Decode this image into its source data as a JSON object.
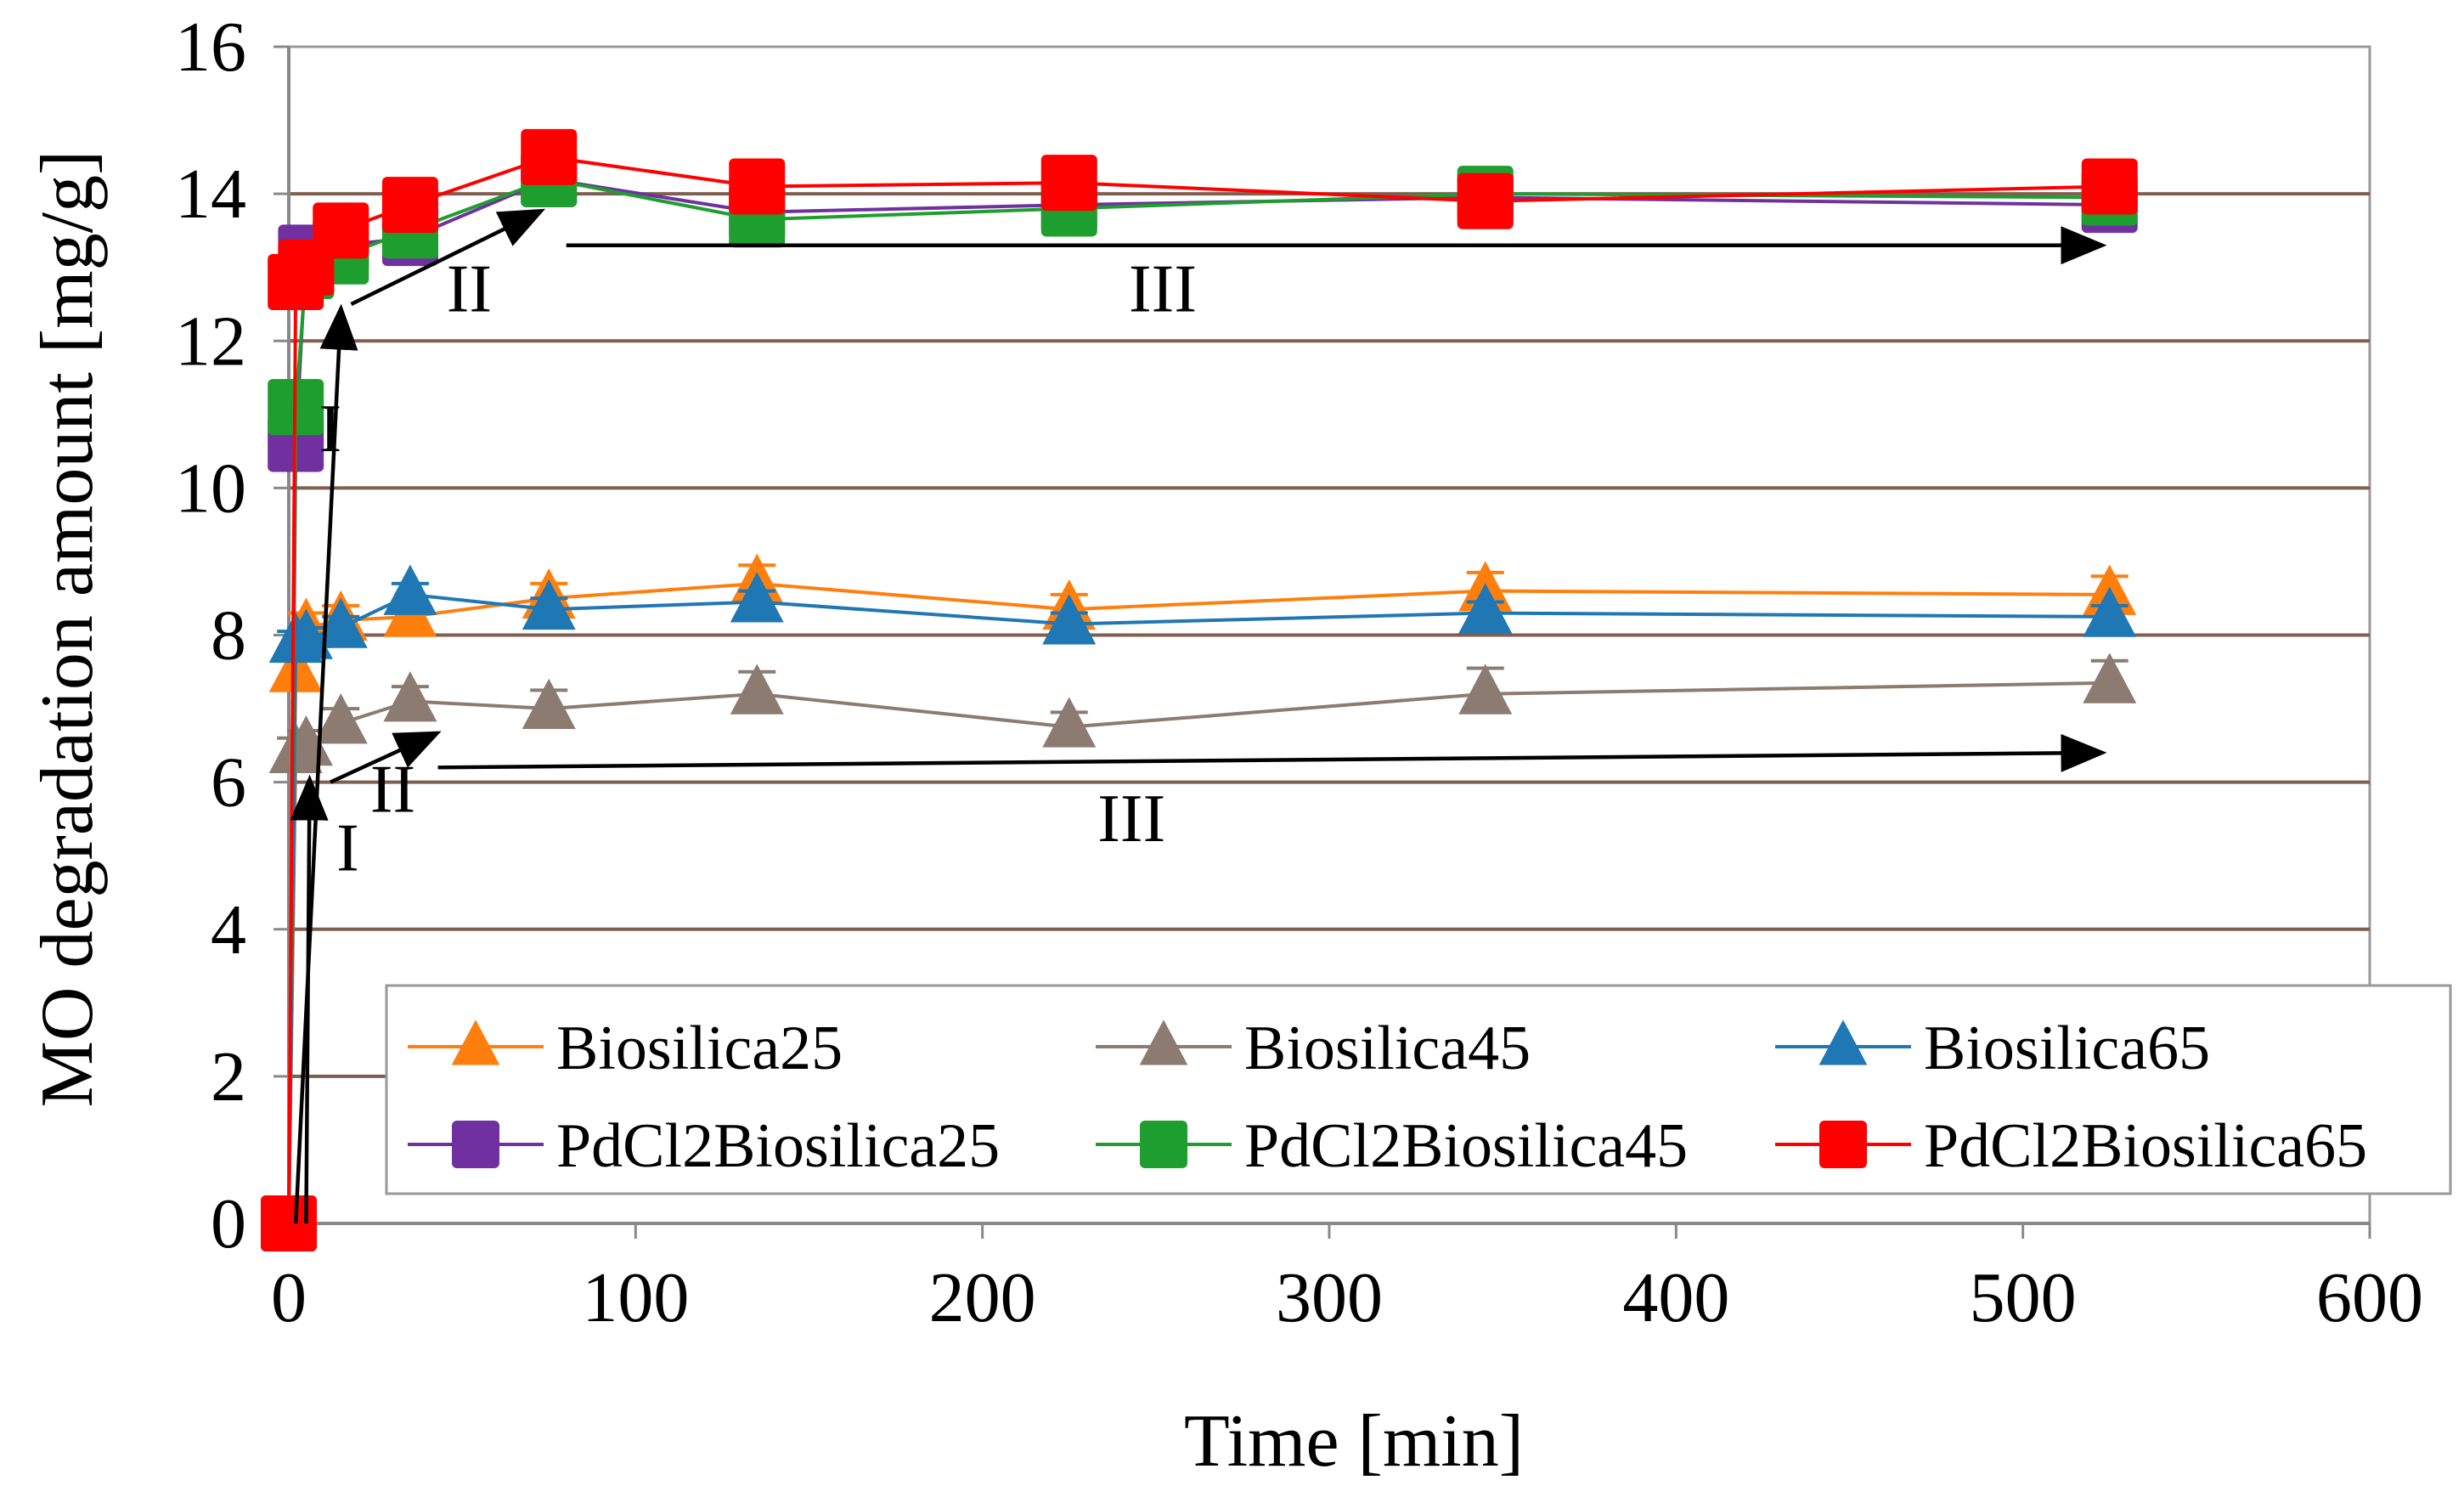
{
  "chart_data": {
    "type": "line",
    "title": "",
    "xlabel": "Time [min]",
    "ylabel": "MO degradation amount [mg/g]",
    "xlim": [
      0,
      600
    ],
    "ylim": [
      0,
      16
    ],
    "xticks": [
      "0",
      "100",
      "200",
      "300",
      "400",
      "500",
      "600"
    ],
    "yticks": [
      "0",
      "2",
      "4",
      "6",
      "8",
      "10",
      "12",
      "14",
      "16"
    ],
    "grid": "horizontal",
    "legend_position": "bottom",
    "x": [
      0,
      2,
      5,
      15,
      35,
      75,
      135,
      225,
      345,
      525
    ],
    "series": [
      {
        "name": "Biosilica25",
        "marker": "triangle",
        "color": "#FF7F0E",
        "values": [
          0,
          7.5,
          8.1,
          8.2,
          8.25,
          8.5,
          8.7,
          8.35,
          8.6,
          8.55
        ],
        "error": [
          0,
          0.2,
          0.2,
          0.2,
          0.2,
          0.2,
          0.25,
          0.2,
          0.25,
          0.25
        ]
      },
      {
        "name": "Biosilica45",
        "marker": "triangle",
        "color": "#8C7B70",
        "values": [
          0,
          6.4,
          6.5,
          6.8,
          7.1,
          7.0,
          7.2,
          6.75,
          7.2,
          7.35
        ],
        "error": [
          0,
          0.2,
          0.2,
          0.2,
          0.2,
          0.25,
          0.3,
          0.2,
          0.35,
          0.3
        ]
      },
      {
        "name": "Biosilica65",
        "marker": "triangle",
        "color": "#1F77B4",
        "values": [
          0,
          7.9,
          7.95,
          8.1,
          8.55,
          8.35,
          8.45,
          8.15,
          8.3,
          8.25
        ],
        "error": [
          0,
          0.15,
          0.15,
          0.15,
          0.15,
          0.15,
          0.15,
          0.15,
          0.15,
          0.15
        ]
      },
      {
        "name": "PdCl2Biosilica25",
        "marker": "square",
        "color": "#7030A0",
        "values": [
          0,
          10.6,
          13.2,
          13.3,
          13.4,
          14.2,
          13.75,
          13.85,
          13.95,
          13.85
        ],
        "error": [
          0,
          0.15,
          0.15,
          0.15,
          0.15,
          0.15,
          0.15,
          0.15,
          0.15,
          0.15
        ]
      },
      {
        "name": "PdCl2Biosilica45",
        "marker": "square",
        "color": "#1E9E2E",
        "values": [
          0,
          11.1,
          12.95,
          13.15,
          13.5,
          14.2,
          13.65,
          13.8,
          14.0,
          13.95
        ],
        "error": [
          0,
          0.15,
          0.15,
          0.15,
          0.15,
          0.15,
          0.15,
          0.15,
          0.15,
          0.15
        ]
      },
      {
        "name": "PdCl2Biosilica65",
        "marker": "square",
        "color": "#FF0000",
        "values": [
          0,
          12.8,
          13.0,
          13.5,
          13.85,
          14.5,
          14.1,
          14.15,
          13.9,
          14.1
        ],
        "error": [
          0,
          0.15,
          0.15,
          0.15,
          0.15,
          0.15,
          0.15,
          0.15,
          0.15,
          0.15
        ]
      }
    ],
    "annotations": [
      {
        "text": "I",
        "x": 12,
        "y": 10.5
      },
      {
        "text": "II",
        "x": 52,
        "y": 12.4
      },
      {
        "text": "III",
        "x": 252,
        "y": 12.4
      },
      {
        "text": "I",
        "x": 17,
        "y": 4.8
      },
      {
        "text": "II",
        "x": 30,
        "y": 5.6
      },
      {
        "text": "III",
        "x": 243,
        "y": 5.2
      }
    ],
    "arrows": [
      {
        "from": [
          2,
          0
        ],
        "to": [
          15,
          12.4
        ]
      },
      {
        "from": [
          18,
          12.5
        ],
        "to": [
          72,
          13.75
        ]
      },
      {
        "from": [
          80,
          13.3
        ],
        "to": [
          522,
          13.3
        ]
      },
      {
        "from": [
          5,
          0
        ],
        "to": [
          6,
          6.0
        ]
      },
      {
        "from": [
          12,
          6.0
        ],
        "to": [
          42,
          6.65
        ]
      },
      {
        "from": [
          43,
          6.2
        ],
        "to": [
          522,
          6.4
        ]
      }
    ]
  }
}
